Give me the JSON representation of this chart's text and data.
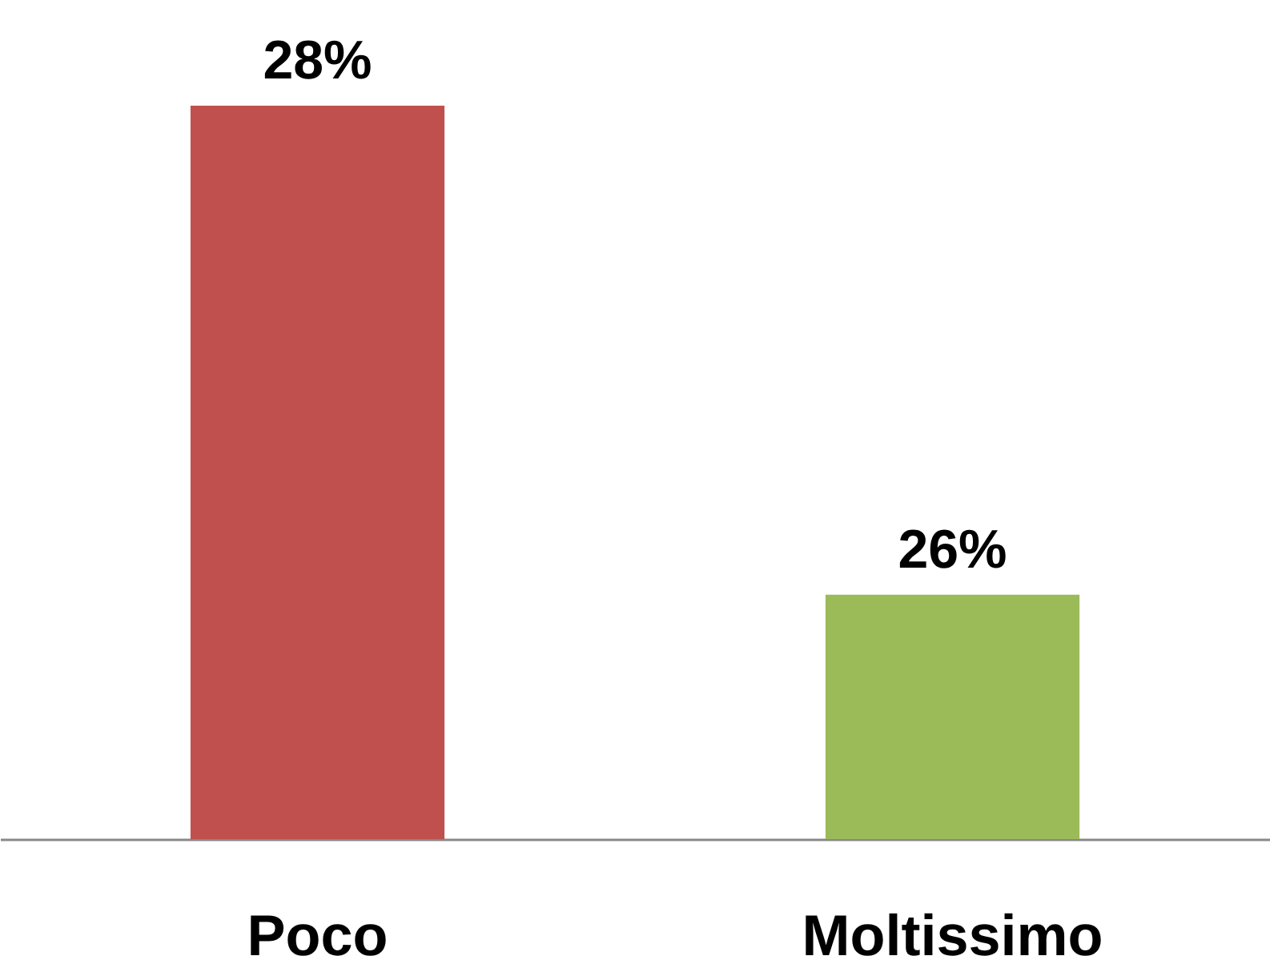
{
  "chart_data": {
    "type": "bar",
    "categories": [
      "Poco",
      "Moltissimo"
    ],
    "values": [
      28,
      26
    ],
    "colors": [
      "#c0504d",
      "#9bbb59"
    ],
    "ylim": [
      25,
      28
    ],
    "value_labels": [
      "28%",
      "26%"
    ],
    "grid": false
  }
}
